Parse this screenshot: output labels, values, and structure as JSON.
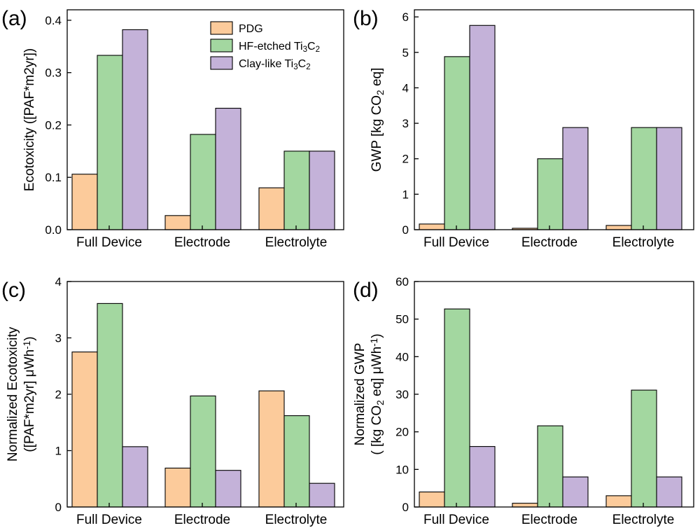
{
  "colors": {
    "PDG": "#fccb9b",
    "HF-etched": "#a3d7a0",
    "Clay-like": "#c4b2d9"
  },
  "legend": [
    {
      "key": "PDG",
      "label": "PDG",
      "subs": []
    },
    {
      "key": "HF-etched",
      "label": "HF-etched Ti₃C₂",
      "parts": [
        [
          "HF-etched Ti",
          ""
        ],
        [
          "3",
          "sub"
        ],
        [
          "C",
          ""
        ],
        [
          "2",
          "sub"
        ]
      ]
    },
    {
      "key": "Clay-like",
      "label": "Clay-like Ti₃C₂",
      "parts": [
        [
          "Clay-like Ti",
          ""
        ],
        [
          "3",
          "sub"
        ],
        [
          "C",
          ""
        ],
        [
          "2",
          "sub"
        ]
      ]
    }
  ],
  "chart_data": [
    {
      "panel": "(a)",
      "type": "bar",
      "categories": [
        "Full Device",
        "Electrode",
        "Electrolyte"
      ],
      "ylabel_lines": [
        [
          [
            "Ecotoxicity ([PAF*m2yr])",
            ""
          ]
        ]
      ],
      "ylim": [
        0,
        0.42
      ],
      "yticks": [
        0.0,
        0.1,
        0.2,
        0.3,
        0.4
      ],
      "tick_decimals": 1,
      "legend_shown": true,
      "series": [
        {
          "name": "PDG",
          "values": [
            0.106,
            0.027,
            0.08
          ]
        },
        {
          "name": "HF-etched Ti3C2",
          "values": [
            0.333,
            0.182,
            0.15
          ]
        },
        {
          "name": "Clay-like Ti3C2",
          "values": [
            0.382,
            0.232,
            0.15
          ]
        }
      ]
    },
    {
      "panel": "(b)",
      "type": "bar",
      "categories": [
        "Full Device",
        "Electrode",
        "Electrolyte"
      ],
      "ylabel_lines": [
        [
          [
            "GWP  [kg CO",
            ""
          ],
          [
            "2",
            "sub"
          ],
          [
            " eq]",
            ""
          ]
        ]
      ],
      "ylim": [
        0,
        6.2
      ],
      "yticks": [
        0,
        1,
        2,
        3,
        4,
        5,
        6
      ],
      "tick_decimals": 0,
      "legend_shown": false,
      "series": [
        {
          "name": "PDG",
          "values": [
            0.16,
            0.04,
            0.12
          ]
        },
        {
          "name": "HF-etched Ti3C2",
          "values": [
            4.88,
            2.0,
            2.88
          ]
        },
        {
          "name": "Clay-like Ti3C2",
          "values": [
            5.76,
            2.88,
            2.88
          ]
        }
      ]
    },
    {
      "panel": "(c)",
      "type": "bar",
      "categories": [
        "Full Device",
        "Electrode",
        "Electrolyte"
      ],
      "ylabel_lines": [
        [
          [
            "Normalized Ecotoxicity",
            ""
          ]
        ],
        [
          [
            "([PAF*m2yr] μWh",
            ""
          ],
          [
            "-1",
            "sup"
          ],
          [
            ")",
            ""
          ]
        ]
      ],
      "ylim": [
        0,
        4
      ],
      "yticks": [
        0,
        1,
        2,
        3,
        4
      ],
      "tick_decimals": 0,
      "legend_shown": false,
      "series": [
        {
          "name": "PDG",
          "values": [
            2.75,
            0.69,
            2.06
          ]
        },
        {
          "name": "HF-etched Ti3C2",
          "values": [
            3.61,
            1.97,
            1.62
          ]
        },
        {
          "name": "Clay-like Ti3C2",
          "values": [
            1.07,
            0.65,
            0.42
          ]
        }
      ]
    },
    {
      "panel": "(d)",
      "type": "bar",
      "categories": [
        "Full Device",
        "Electrode",
        "Electrolyte"
      ],
      "ylabel_lines": [
        [
          [
            "Normalized GWP",
            ""
          ]
        ],
        [
          [
            "( [kg CO",
            ""
          ],
          [
            "2",
            "sub"
          ],
          [
            " eq] μWh",
            ""
          ],
          [
            "-1",
            "sup"
          ],
          [
            ")",
            ""
          ]
        ]
      ],
      "ylim": [
        0,
        60
      ],
      "yticks": [
        0,
        10,
        20,
        30,
        40,
        50,
        60
      ],
      "tick_decimals": 0,
      "legend_shown": false,
      "series": [
        {
          "name": "PDG",
          "values": [
            4.0,
            1.0,
            3.0
          ]
        },
        {
          "name": "HF-etched Ti3C2",
          "values": [
            52.7,
            21.6,
            31.1
          ]
        },
        {
          "name": "Clay-like Ti3C2",
          "values": [
            16.1,
            8.0,
            8.0
          ]
        }
      ]
    }
  ]
}
